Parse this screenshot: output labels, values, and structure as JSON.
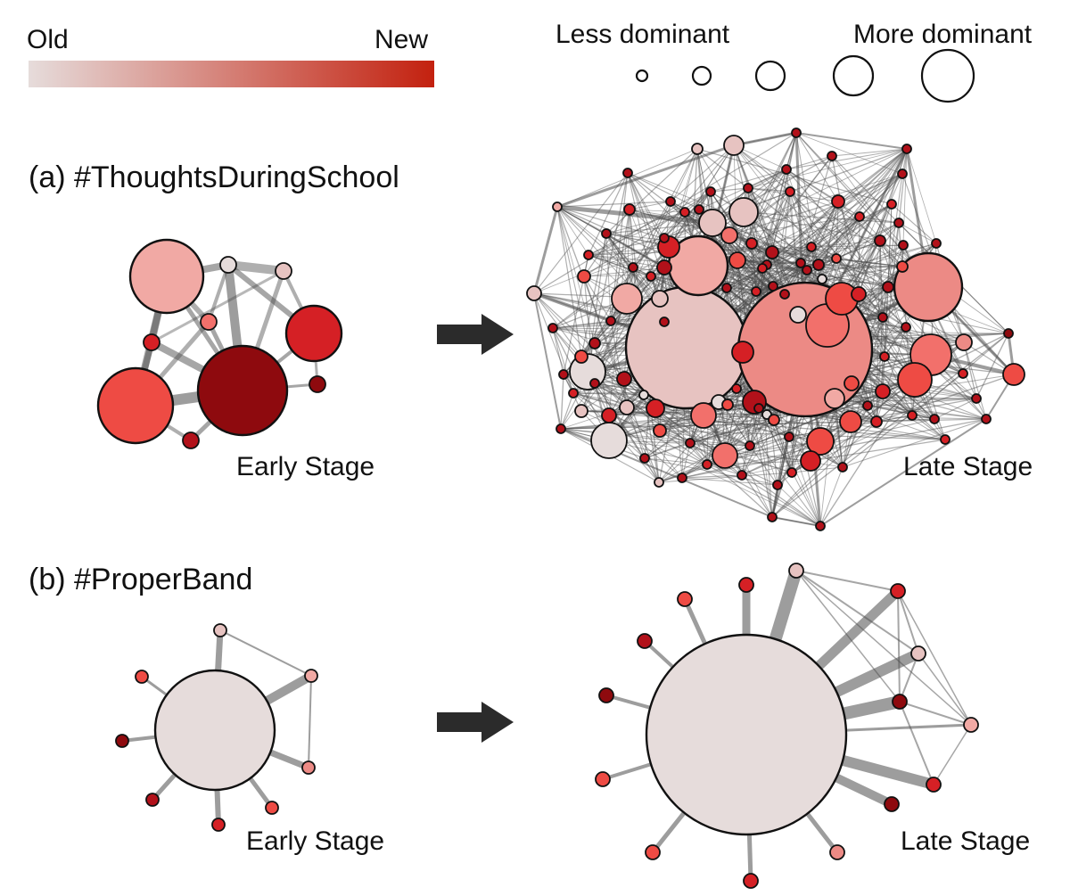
{
  "legend": {
    "age": {
      "old_label": "Old",
      "new_label": "New",
      "color_old": "#e6dcdb",
      "color_new": "#c3210f"
    },
    "dominance": {
      "less_label": "Less dominant",
      "more_label": "More dominant",
      "levels": 5
    }
  },
  "colors": {
    "edge": "#4d4d4d",
    "node_stroke": "#111111",
    "arrow": "#2b2b2b",
    "palette": [
      "#e6dcdb",
      "#e7c3c1",
      "#f1a9a4",
      "#ec8a85",
      "#f2706b",
      "#ee4b44",
      "#d52025",
      "#b2111a",
      "#8e0a0e"
    ]
  },
  "panels": [
    {
      "id": "a",
      "title": "(a) #ThoughtsDuringSchool",
      "early": {
        "label": "Early Stage"
      },
      "late": {
        "label": "Late Stage"
      }
    },
    {
      "id": "b",
      "title": "(b) #ProperBand",
      "early": {
        "label": "Early Stage"
      },
      "late": {
        "label": "Late Stage"
      }
    }
  ]
}
